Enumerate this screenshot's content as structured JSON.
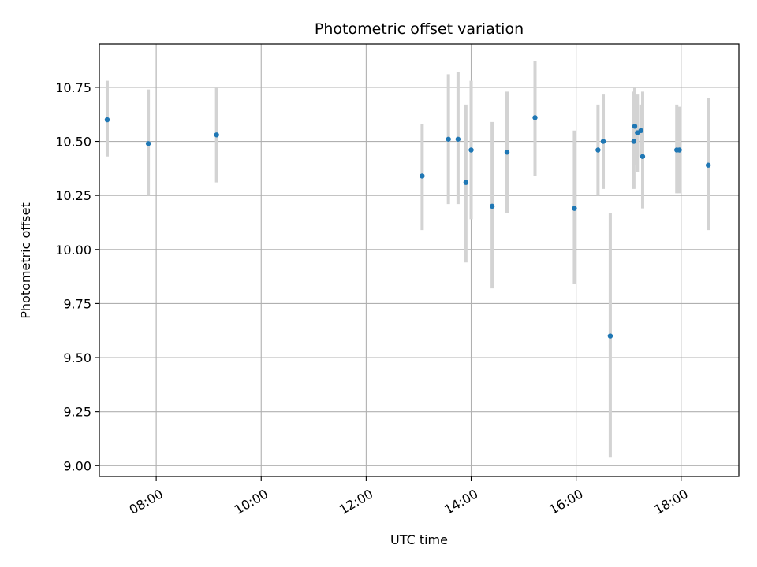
{
  "chart_data": {
    "type": "scatter",
    "title": "Photometric offset variation",
    "xlabel": "UTC time",
    "ylabel": "Photometric offset",
    "grid": true,
    "xlim": [
      "06:55",
      "19:06"
    ],
    "ylim": [
      8.95,
      10.95
    ],
    "xticks": [
      "08:00",
      "10:00",
      "12:00",
      "14:00",
      "16:00",
      "18:00"
    ],
    "yticks": [
      9.0,
      9.25,
      9.5,
      9.75,
      10.0,
      10.25,
      10.5,
      10.75
    ],
    "ytick_labels": [
      "9.00",
      "9.25",
      "9.50",
      "9.75",
      "10.00",
      "10.25",
      "10.50",
      "10.75"
    ],
    "colors": {
      "point": "#1f77b4",
      "errorbar": "#d3d3d3",
      "grid": "#b0b0b0"
    },
    "points": [
      {
        "t": "07:04",
        "y": 10.6,
        "lo": 10.43,
        "hi": 10.78
      },
      {
        "t": "07:51",
        "y": 10.49,
        "lo": 10.25,
        "hi": 10.74
      },
      {
        "t": "09:09",
        "y": 10.53,
        "lo": 10.31,
        "hi": 10.75
      },
      {
        "t": "13:04",
        "y": 10.34,
        "lo": 10.09,
        "hi": 10.58
      },
      {
        "t": "13:34",
        "y": 10.51,
        "lo": 10.21,
        "hi": 10.81
      },
      {
        "t": "13:45",
        "y": 10.51,
        "lo": 10.21,
        "hi": 10.82
      },
      {
        "t": "13:54",
        "y": 10.31,
        "lo": 9.94,
        "hi": 10.67
      },
      {
        "t": "14:00",
        "y": 10.46,
        "lo": 10.14,
        "hi": 10.78
      },
      {
        "t": "14:24",
        "y": 10.2,
        "lo": 9.82,
        "hi": 10.59
      },
      {
        "t": "14:41",
        "y": 10.45,
        "lo": 10.17,
        "hi": 10.73
      },
      {
        "t": "15:13",
        "y": 10.61,
        "lo": 10.34,
        "hi": 10.87
      },
      {
        "t": "15:58",
        "y": 10.19,
        "lo": 9.84,
        "hi": 10.55
      },
      {
        "t": "16:25",
        "y": 10.46,
        "lo": 10.25,
        "hi": 10.67
      },
      {
        "t": "16:31",
        "y": 10.5,
        "lo": 10.28,
        "hi": 10.72
      },
      {
        "t": "16:39",
        "y": 9.6,
        "lo": 9.04,
        "hi": 10.17
      },
      {
        "t": "17:06",
        "y": 10.5,
        "lo": 10.28,
        "hi": 10.73
      },
      {
        "t": "17:07",
        "y": 10.57,
        "lo": 10.39,
        "hi": 10.75
      },
      {
        "t": "17:10",
        "y": 10.54,
        "lo": 10.36,
        "hi": 10.72
      },
      {
        "t": "17:14",
        "y": 10.55,
        "lo": 10.43,
        "hi": 10.67
      },
      {
        "t": "17:16",
        "y": 10.43,
        "lo": 10.19,
        "hi": 10.73
      },
      {
        "t": "17:55",
        "y": 10.46,
        "lo": 10.26,
        "hi": 10.67
      },
      {
        "t": "17:58",
        "y": 10.46,
        "lo": 10.26,
        "hi": 10.66
      },
      {
        "t": "18:31",
        "y": 10.39,
        "lo": 10.09,
        "hi": 10.7
      }
    ]
  }
}
